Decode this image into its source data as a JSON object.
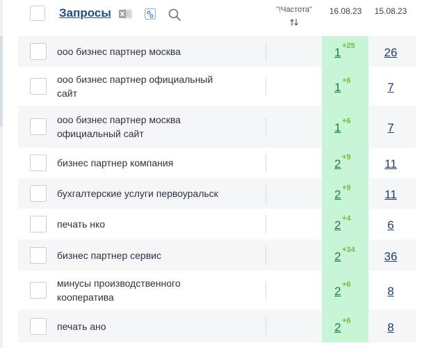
{
  "header": {
    "title": "Запросы",
    "freq_label": "\"!Частота\"",
    "date_current": "16.08.23",
    "date_prev": "15.08.23",
    "icons": [
      "excel-icon",
      "columns-config-icon",
      "search-icon",
      "sort-icon"
    ]
  },
  "colors": {
    "title": "#1f4e8c",
    "highlight_column": "#c9f5d7",
    "position_text": "#1d7a48",
    "delta_positive": "#6cbf3e",
    "prev_text": "#1f3d6b"
  },
  "rows": [
    {
      "query": [
        "ооо бизнес партнер москва"
      ],
      "position": "1",
      "delta": "+25",
      "prev": "26"
    },
    {
      "query": [
        "ооо бизнес партнер официальный",
        "сайт"
      ],
      "position": "1",
      "delta": "+6",
      "prev": "7"
    },
    {
      "query": [
        "ооо бизнес партнер москва",
        "официальный сайт"
      ],
      "position": "1",
      "delta": "+6",
      "prev": "7"
    },
    {
      "query": [
        "бизнес партнер компания"
      ],
      "position": "2",
      "delta": "+9",
      "prev": "11"
    },
    {
      "query": [
        "бухгалтерские услуги первоуральск"
      ],
      "position": "2",
      "delta": "+9",
      "prev": "11"
    },
    {
      "query": [
        "печать нко"
      ],
      "position": "2",
      "delta": "+4",
      "prev": "6"
    },
    {
      "query": [
        "бизнес партнер сервис"
      ],
      "position": "2",
      "delta": "+34",
      "prev": "36"
    },
    {
      "query": [
        "минусы производственного",
        "кооператива"
      ],
      "position": "2",
      "delta": "+6",
      "prev": "8"
    },
    {
      "query": [
        "печать ано"
      ],
      "position": "2",
      "delta": "+6",
      "prev": "8"
    }
  ]
}
